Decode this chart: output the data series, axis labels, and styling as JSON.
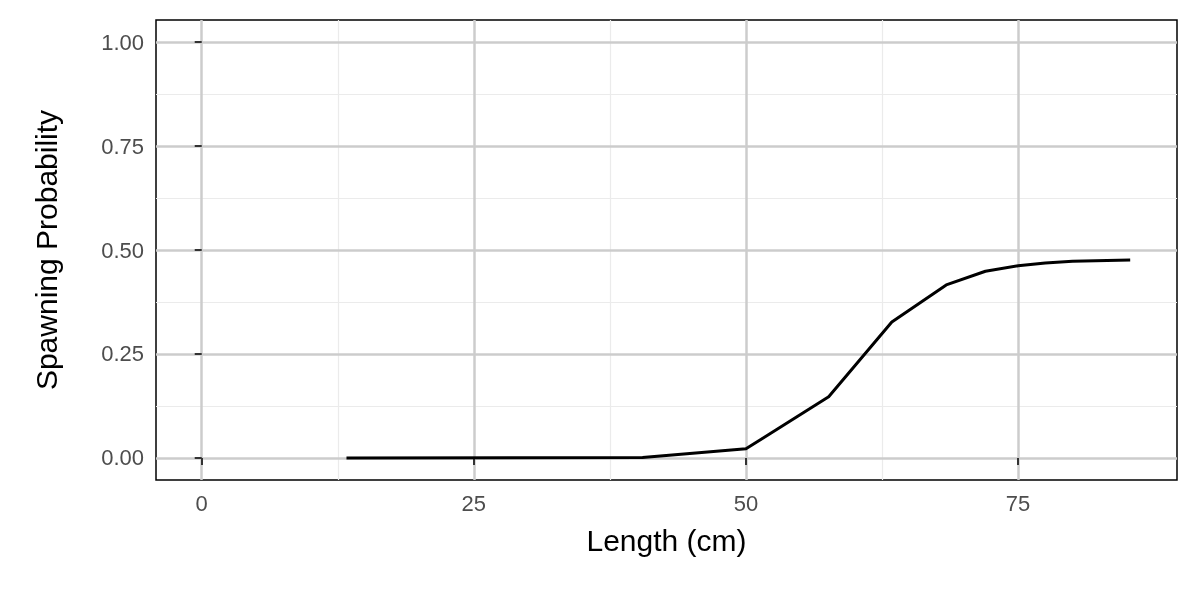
{
  "chart_data": {
    "type": "line",
    "xlabel": "Length (cm)",
    "ylabel": "Spawning Probability",
    "x": [
      13.3,
      40.5,
      50.0,
      57.6,
      63.4,
      68.4,
      72.0,
      75.0,
      77.5,
      80.0,
      85.3
    ],
    "series": [
      {
        "color": "#000000",
        "values": [
          0.0,
          0.001,
          0.022,
          0.147,
          0.327,
          0.416,
          0.449,
          0.462,
          0.469,
          0.473,
          0.476
        ]
      }
    ],
    "xlim": [
      -4.2,
      89.6
    ],
    "ylim": [
      -0.053,
      1.053
    ],
    "xticks": [
      0,
      25,
      50,
      75
    ],
    "yticks": [
      {
        "value": 0,
        "label": "0.00"
      },
      {
        "value": 0.25,
        "label": "0.25"
      },
      {
        "value": 0.5,
        "label": "0.50"
      },
      {
        "value": 0.75,
        "label": "0.75"
      },
      {
        "value": 1,
        "label": "1.00"
      }
    ],
    "grid": true,
    "marker": "none",
    "line_style": "solid"
  }
}
